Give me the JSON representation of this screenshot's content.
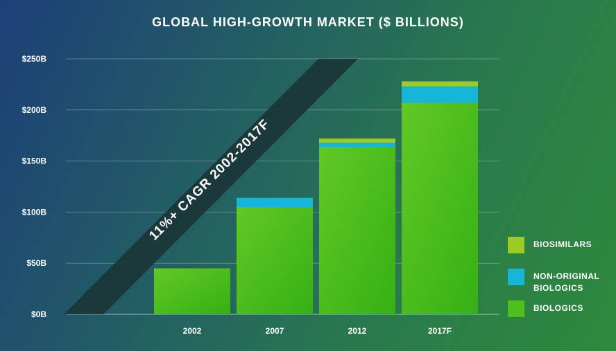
{
  "chart_data": {
    "type": "bar",
    "stacked": true,
    "title": "GLOBAL HIGH-GROWTH MARKET ($ BILLIONS)",
    "categories": [
      "2002",
      "2007",
      "2012",
      "2017F"
    ],
    "series": [
      {
        "name": "BIOLOGICS",
        "values": [
          45,
          105,
          164,
          207
        ],
        "color": "#4ec01e"
      },
      {
        "name": "NON-ORIGINAL BIOLOGICS",
        "values": [
          0,
          9,
          4,
          16
        ],
        "color": "#17b6d8"
      },
      {
        "name": "BIOSIMILARS",
        "values": [
          0,
          0,
          4,
          5
        ],
        "color": "#9ccc23"
      }
    ],
    "y_ticks": [
      "$0B",
      "$50B",
      "$100B",
      "$150B",
      "$200B",
      "$250B"
    ],
    "ylim": [
      0,
      250
    ],
    "xlabel": "",
    "ylabel": "",
    "grid": true,
    "legend_position": "right",
    "annotation": "11%+ CAGR 2002-2017F"
  },
  "legend": [
    {
      "label": "BIOSIMILARS",
      "color": "#9ccc23"
    },
    {
      "label": "NON-ORIGINAL BIOLOGICS",
      "color": "#17b6d8"
    },
    {
      "label": "BIOLOGICS",
      "color": "#4ec01e"
    }
  ]
}
